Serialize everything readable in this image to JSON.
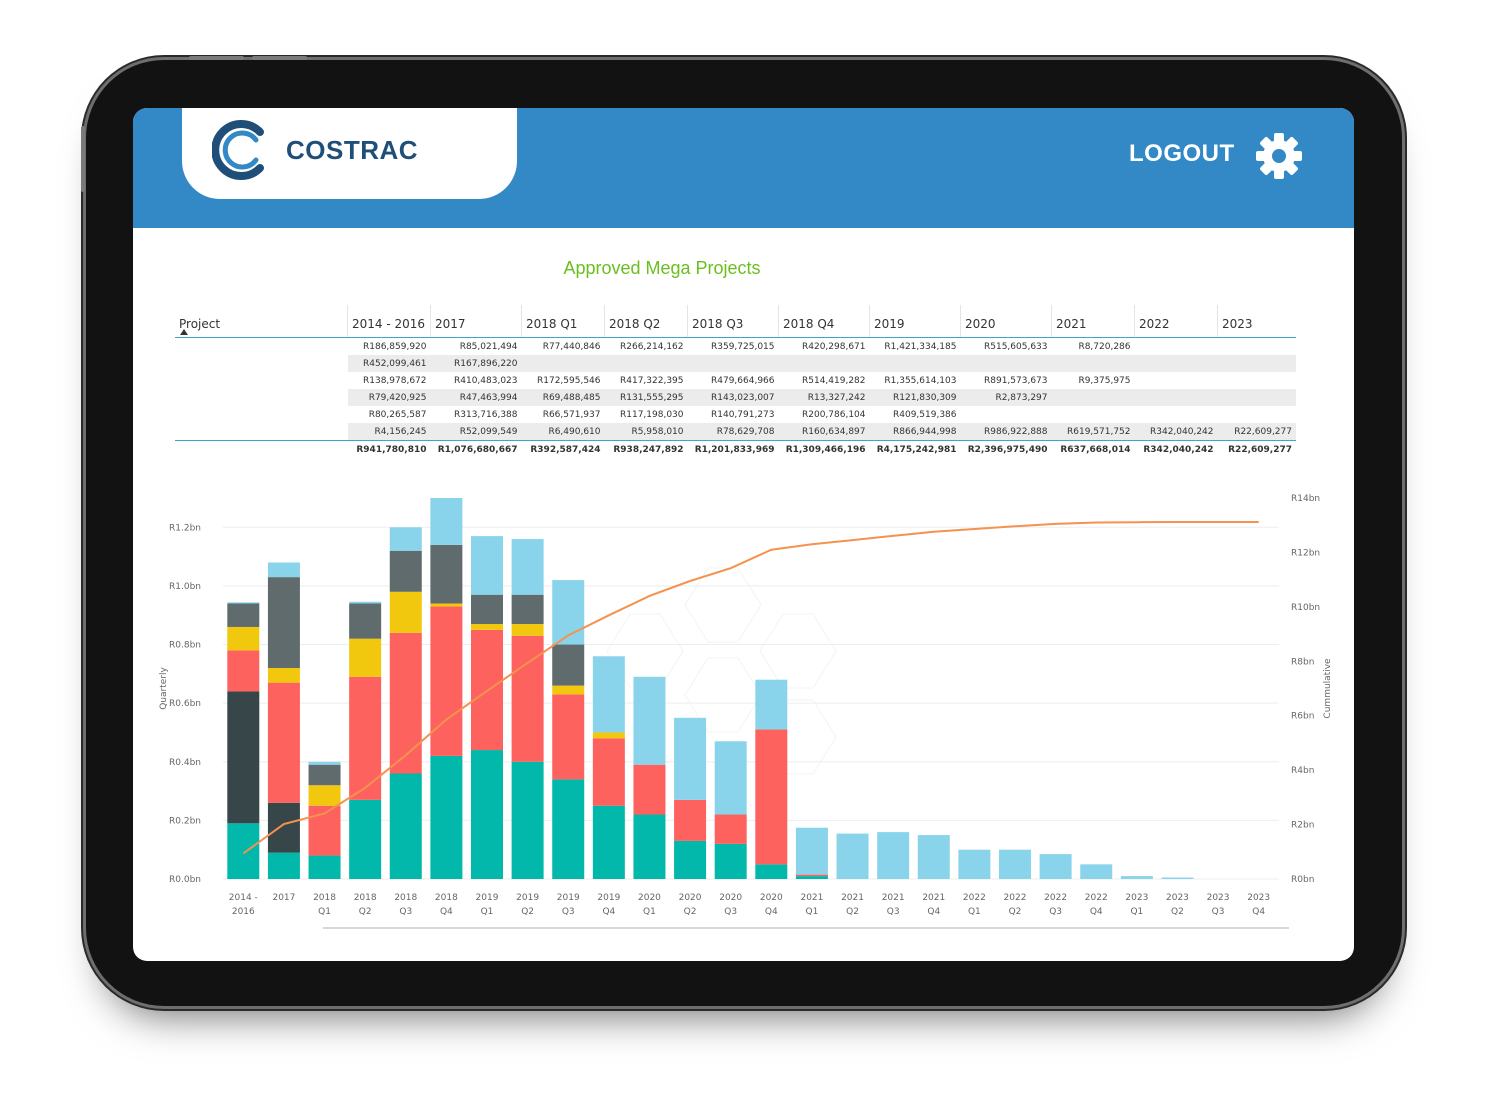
{
  "brand": {
    "logo_text": "COSTRAC"
  },
  "header": {
    "logout_label": "LOGOUT"
  },
  "icons": {
    "settings": "gear-icon",
    "sort": "triangle-up-icon"
  },
  "colors": {
    "header": "#3289c5",
    "title": "#6abf1e",
    "line": "#f4924f"
  },
  "report": {
    "title": "Approved Mega Projects"
  },
  "matrix": {
    "first_header": "Project",
    "columns": [
      "2014 - 2016",
      "2017",
      "2018 Q1",
      "2018 Q2",
      "2018 Q3",
      "2018 Q4",
      "2019",
      "2020",
      "2021",
      "2022",
      "2023"
    ],
    "rows": [
      [
        "R186,859,920",
        "R85,021,494",
        "R77,440,846",
        "R266,214,162",
        "R359,725,015",
        "R420,298,671",
        "R1,421,334,185",
        "R515,605,633",
        "R8,720,286",
        "",
        ""
      ],
      [
        "R452,099,461",
        "R167,896,220",
        "",
        "",
        "",
        "",
        "",
        "",
        "",
        "",
        ""
      ],
      [
        "R138,978,672",
        "R410,483,023",
        "R172,595,546",
        "R417,322,395",
        "R479,664,966",
        "R514,419,282",
        "R1,355,614,103",
        "R891,573,673",
        "R9,375,975",
        "",
        ""
      ],
      [
        "R79,420,925",
        "R47,463,994",
        "R69,488,485",
        "R131,555,295",
        "R143,023,007",
        "R13,327,242",
        "R121,830,309",
        "R2,873,297",
        "",
        "",
        ""
      ],
      [
        "R80,265,587",
        "R313,716,388",
        "R66,571,937",
        "R117,198,030",
        "R140,791,273",
        "R200,786,104",
        "R409,519,386",
        "",
        "",
        "",
        ""
      ],
      [
        "R4,156,245",
        "R52,099,549",
        "R6,490,610",
        "R5,958,010",
        "R78,629,708",
        "R160,634,897",
        "R866,944,998",
        "R986,922,888",
        "R619,571,752",
        "R342,040,242",
        "R22,609,277"
      ]
    ],
    "totals": [
      "R941,780,810",
      "R1,076,680,667",
      "R392,587,424",
      "R938,247,892",
      "R1,201,833,969",
      "R1,309,466,196",
      "R4,175,242,981",
      "R2,396,975,490",
      "R637,668,014",
      "R342,040,242",
      "R22,609,277"
    ]
  },
  "chart_data": {
    "type": "bar",
    "stacked": true,
    "categories": [
      [
        "2014 -",
        "2016"
      ],
      [
        "2017",
        ""
      ],
      [
        "2018",
        "Q1"
      ],
      [
        "2018",
        "Q2"
      ],
      [
        "2018",
        "Q3"
      ],
      [
        "2018",
        "Q4"
      ],
      [
        "2019",
        "Q1"
      ],
      [
        "2019",
        "Q2"
      ],
      [
        "2019",
        "Q3"
      ],
      [
        "2019",
        "Q4"
      ],
      [
        "2020",
        "Q1"
      ],
      [
        "2020",
        "Q2"
      ],
      [
        "2020",
        "Q3"
      ],
      [
        "2020",
        "Q4"
      ],
      [
        "2021",
        "Q1"
      ],
      [
        "2021",
        "Q2"
      ],
      [
        "2021",
        "Q3"
      ],
      [
        "2021",
        "Q4"
      ],
      [
        "2022",
        "Q1"
      ],
      [
        "2022",
        "Q2"
      ],
      [
        "2022",
        "Q3"
      ],
      [
        "2022",
        "Q4"
      ],
      [
        "2023",
        "Q1"
      ],
      [
        "2023",
        "Q2"
      ],
      [
        "2023",
        "Q3"
      ],
      [
        "2023",
        "Q4"
      ]
    ],
    "ylabel": "Quarterly",
    "y2label": "Cummulative",
    "ylim": [
      0,
      1.3
    ],
    "y_ticks": [
      "R0.0bn",
      "R0.2bn",
      "R0.4bn",
      "R0.6bn",
      "R0.8bn",
      "R1.0bn",
      "R1.2bn"
    ],
    "y2lim": [
      0,
      14
    ],
    "y2_ticks": [
      "R0bn",
      "R2bn",
      "R4bn",
      "R6bn",
      "R8bn",
      "R10bn",
      "R12bn",
      "R14bn"
    ],
    "series": [
      {
        "color": "#01b8aa",
        "values": [
          0.19,
          0.09,
          0.08,
          0.27,
          0.36,
          0.42,
          0.44,
          0.4,
          0.34,
          0.25,
          0.22,
          0.13,
          0.12,
          0.05,
          0.01,
          0,
          0,
          0,
          0,
          0,
          0,
          0,
          0,
          0,
          0,
          0
        ]
      },
      {
        "color": "#374649",
        "values": [
          0.45,
          0.17,
          0,
          0,
          0,
          0,
          0,
          0,
          0,
          0,
          0,
          0,
          0,
          0,
          0,
          0,
          0,
          0,
          0,
          0,
          0,
          0,
          0,
          0,
          0,
          0
        ]
      },
      {
        "color": "#fd625e",
        "values": [
          0.14,
          0.41,
          0.17,
          0.42,
          0.48,
          0.51,
          0.41,
          0.43,
          0.29,
          0.23,
          0.17,
          0.14,
          0.1,
          0.46,
          0.005,
          0,
          0,
          0,
          0,
          0,
          0,
          0,
          0,
          0,
          0,
          0
        ]
      },
      {
        "color": "#f2c80f",
        "values": [
          0.08,
          0.05,
          0.07,
          0.13,
          0.14,
          0.01,
          0.02,
          0.04,
          0.03,
          0.02,
          0,
          0,
          0,
          0,
          0,
          0,
          0,
          0,
          0,
          0,
          0,
          0,
          0,
          0,
          0,
          0
        ]
      },
      {
        "color": "#5f6b6d",
        "values": [
          0.08,
          0.31,
          0.07,
          0.12,
          0.14,
          0.2,
          0.1,
          0.1,
          0.14,
          0,
          0,
          0,
          0,
          0,
          0,
          0,
          0,
          0,
          0,
          0,
          0,
          0,
          0,
          0,
          0,
          0
        ]
      },
      {
        "color": "#8ad4eb",
        "values": [
          0.004,
          0.05,
          0.01,
          0.006,
          0.08,
          0.16,
          0.2,
          0.19,
          0.22,
          0.26,
          0.3,
          0.28,
          0.25,
          0.17,
          0.16,
          0.155,
          0.16,
          0.15,
          0.1,
          0.1,
          0.085,
          0.05,
          0.01,
          0.005,
          0,
          0
        ]
      }
    ],
    "cumulative": {
      "color": "#f4924f",
      "values": [
        0.94,
        2.02,
        2.41,
        3.35,
        4.55,
        5.86,
        6.91,
        7.94,
        8.95,
        9.69,
        10.4,
        10.95,
        11.42,
        12.1,
        12.3,
        12.45,
        12.61,
        12.76,
        12.86,
        12.96,
        13.05,
        13.1,
        13.11,
        13.12,
        13.12,
        13.12
      ]
    }
  }
}
